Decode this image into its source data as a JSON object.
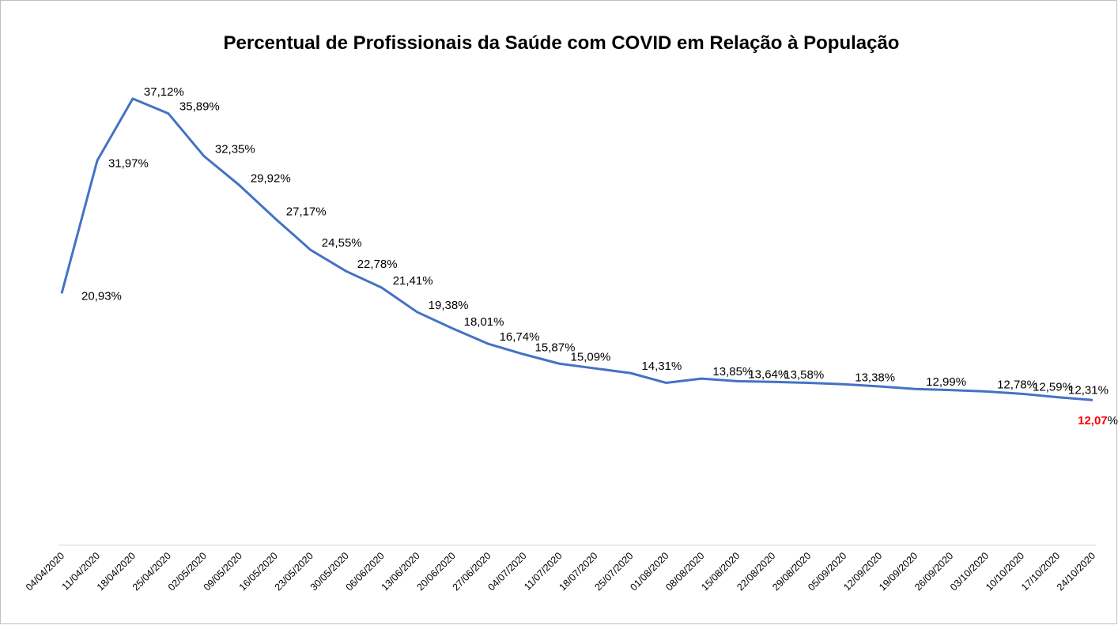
{
  "chart_data": {
    "type": "line",
    "title": "Percentual de Profissionais da Saúde com COVID em Relação à População",
    "categories": [
      "04/04/2020",
      "11/04/2020",
      "18/04/2020",
      "25/04/2020",
      "02/05/2020",
      "09/05/2020",
      "16/05/2020",
      "23/05/2020",
      "30/05/2020",
      "06/06/2020",
      "13/06/2020",
      "20/06/2020",
      "27/06/2020",
      "04/07/2020",
      "11/07/2020",
      "18/07/2020",
      "25/07/2020",
      "01/08/2020",
      "08/08/2020",
      "15/08/2020",
      "22/08/2020",
      "29/08/2020",
      "05/09/2020",
      "12/09/2020",
      "19/09/2020",
      "26/09/2020",
      "03/10/2020",
      "10/10/2020",
      "17/10/2020",
      "24/10/2020"
    ],
    "series": [
      {
        "color": "#4472c4",
        "values": [
          20.93,
          31.97,
          37.12,
          35.89,
          32.35,
          29.92,
          27.17,
          24.55,
          22.78,
          21.41,
          19.38,
          18.01,
          16.74,
          15.87,
          15.09,
          14.7,
          14.31,
          13.5,
          13.85,
          13.64,
          13.58,
          13.5,
          13.38,
          13.2,
          12.99,
          12.9,
          12.78,
          12.59,
          12.31,
          12.07
        ],
        "value_labels": [
          "20,93%",
          "31,97%",
          "37,12%",
          "35,89%",
          "32,35%",
          "29,92%",
          "27,17%",
          "24,55%",
          "22,78%",
          "21,41%",
          "19,38%",
          "18,01%",
          "16,74%",
          "15,87%",
          "15,09%",
          null,
          "14,31%",
          null,
          "13,85%",
          "13,64%",
          "13,58%",
          null,
          "13,38%",
          null,
          "12,99%",
          null,
          "12,78%",
          "12,59%",
          "12,31%",
          "12,07%"
        ]
      }
    ],
    "highlight": {
      "index": 29,
      "color": "#ff0000"
    },
    "ylim": [
      0,
      40
    ]
  }
}
